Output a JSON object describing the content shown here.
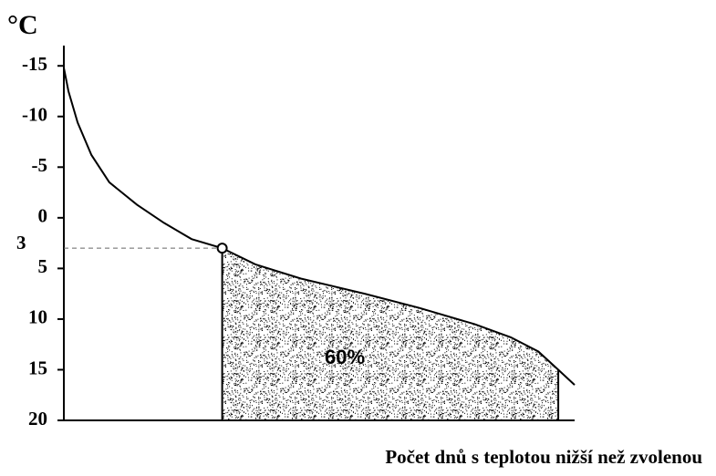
{
  "chart_data": {
    "type": "line",
    "y_label": "°C",
    "x_label": "Počet dnů s teplotou nižší než zvolenou",
    "annotation": "60%",
    "x": [
      0,
      0.9,
      2.7,
      5.4,
      8.9,
      14.3,
      19.6,
      25,
      31,
      37.5,
      46.4,
      58.9,
      69.6,
      80.4,
      87.5,
      92.9,
      96.8,
      100
    ],
    "values": [
      -14.8,
      -12.5,
      -9.4,
      -6.2,
      -3.5,
      -1.3,
      0.5,
      2.1,
      3,
      4.6,
      6,
      7.5,
      8.9,
      10.5,
      11.8,
      13.2,
      15,
      16.5
    ],
    "color": "#000000",
    "xlim": [
      0,
      100
    ],
    "ylim": [
      20,
      -17
    ],
    "yticks": [
      -15,
      -10,
      -5,
      0,
      5,
      10,
      15,
      20
    ],
    "threshold": {
      "x": 31,
      "y": 3
    },
    "shade_end": 96.8
  }
}
